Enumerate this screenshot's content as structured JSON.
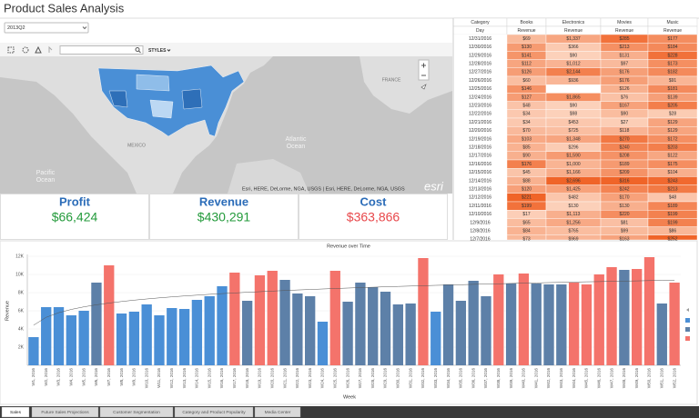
{
  "header": {
    "title": "Product Sales Analysis"
  },
  "filter": {
    "value": "2013Q2"
  },
  "map_toolbar": {
    "styles": "STYLES"
  },
  "map": {
    "labels": [
      {
        "lines": [
          "Pacific",
          "Ocean"
        ]
      },
      {
        "lines": [
          "Atlantic",
          "Ocean"
        ]
      },
      {
        "lines": [
          "MEXICO"
        ]
      },
      {
        "lines": [
          "FRANCE"
        ]
      }
    ],
    "attribution": "Esri, HERE, DeLorme, NGA, USGS | Esri, HERE, DeLorme, NGA, USGS",
    "logo": "esri"
  },
  "kpis": [
    {
      "label": "Profit",
      "value": "$66,424"
    },
    {
      "label": "Revenue",
      "value": "$430,291"
    },
    {
      "label": "Cost",
      "value": "$363,866"
    }
  ],
  "table": {
    "header": [
      "Category",
      "Books",
      "Electronics",
      "Movies",
      "Music"
    ],
    "subheader": [
      "Day",
      "Revenue",
      "Revenue",
      "Revenue",
      "Revenue"
    ],
    "rows": [
      [
        "12/31/2016",
        "$69",
        "$1,337",
        "$285",
        "$177"
      ],
      [
        "12/30/2016",
        "$130",
        "$366",
        "$213",
        "$184"
      ],
      [
        "12/29/2016",
        "$141",
        "$90",
        "$131",
        "$228"
      ],
      [
        "12/28/2016",
        "$112",
        "$1,012",
        "$97",
        "$173"
      ],
      [
        "12/27/2016",
        "$126",
        "$2,144",
        "$176",
        "$182"
      ],
      [
        "12/26/2016",
        "$60",
        "$936",
        "$176",
        "$91"
      ],
      [
        "12/25/2016",
        "$146",
        null,
        "$126",
        "$181"
      ],
      [
        "12/24/2016",
        "$127",
        "$1,865",
        "$76",
        "$139"
      ],
      [
        "12/23/2016",
        "$48",
        "$90",
        "$167",
        "$205"
      ],
      [
        "12/22/2016",
        "$34",
        "$98",
        "$90",
        "$28"
      ],
      [
        "12/21/2016",
        "$34",
        "$453",
        "$27",
        "$129"
      ],
      [
        "12/20/2016",
        "$70",
        "$725",
        "$118",
        "$129"
      ],
      [
        "12/19/2016",
        "$103",
        "$1,348",
        "$270",
        "$172"
      ],
      [
        "12/18/2016",
        "$85",
        "$296",
        "$240",
        "$203"
      ],
      [
        "12/17/2016",
        "$90",
        "$1,590",
        "$208",
        "$122"
      ],
      [
        "12/16/2016",
        "$176",
        "$1,000",
        "$189",
        "$175"
      ],
      [
        "12/15/2016",
        "$45",
        "$1,166",
        "$209",
        "$104"
      ],
      [
        "12/14/2016",
        "$88",
        "$2,696",
        "$316",
        "$243"
      ],
      [
        "12/13/2016",
        "$120",
        "$1,425",
        "$242",
        "$213"
      ],
      [
        "12/12/2016",
        "$221",
        "$482",
        "$170",
        "$48"
      ],
      [
        "12/11/2016",
        "$199",
        "$130",
        "$130",
        "$189"
      ],
      [
        "12/10/2016",
        "$17",
        "$1,113",
        "$220",
        "$199"
      ],
      [
        "12/9/2016",
        "$65",
        "$1,256",
        "$81",
        "$199"
      ],
      [
        "12/8/2016",
        "$84",
        "$765",
        "$99",
        "$86"
      ],
      [
        "12/7/2016",
        "$73",
        "$969",
        "$163",
        "$252"
      ]
    ]
  },
  "chart_data": {
    "type": "bar",
    "title": "Revenue over Time",
    "x_label": "Week",
    "y_label": "Revenue",
    "categories": [
      "W1, 2016",
      "W2, 2016",
      "W3, 2016",
      "W4, 2016",
      "W5, 2016",
      "W6, 2016",
      "W7, 2016",
      "W8, 2016",
      "W9, 2016",
      "W10, 2016",
      "W11, 2016",
      "W12, 2016",
      "W13, 2016",
      "W14, 2016",
      "W15, 2016",
      "W16, 2016",
      "W17, 2016",
      "W18, 2016",
      "W19, 2016",
      "W20, 2016",
      "W21, 2016",
      "W22, 2016",
      "W23, 2016",
      "W24, 2016",
      "W25, 2016",
      "W26, 2016",
      "W27, 2016",
      "W28, 2016",
      "W29, 2016",
      "W30, 2016",
      "W31, 2016",
      "W32, 2016",
      "W33, 2016",
      "W34, 2016",
      "W35, 2016",
      "W36, 2016",
      "W37, 2016",
      "W38, 2016",
      "W39, 2016",
      "W40, 2016",
      "W41, 2016",
      "W42, 2016",
      "W43, 2016",
      "W44, 2016",
      "W45, 2016",
      "W46, 2016",
      "W47, 2016",
      "W48, 2016",
      "W49, 2016",
      "W50, 2016",
      "W51, 2016",
      "W52, 2016"
    ],
    "values": [
      3100,
      6400,
      6400,
      5500,
      6000,
      9100,
      11000,
      5700,
      5900,
      6700,
      5500,
      6300,
      6200,
      7200,
      7600,
      8700,
      10200,
      7100,
      9900,
      10400,
      9400,
      7900,
      7600,
      4800,
      10400,
      7000,
      9100,
      8600,
      8100,
      6700,
      6800,
      11800,
      5900,
      8900,
      7100,
      9300,
      7600,
      10000,
      9000,
      10100,
      9000,
      8900,
      8900,
      9100,
      8900,
      10000,
      10800,
      10500,
      10600,
      11900,
      6800,
      9100
    ],
    "colors": [
      "#4a8fd6",
      "#4a8fd6",
      "#4a8fd6",
      "#4a8fd6",
      "#4a8fd6",
      "#5d80a8",
      "#f4736b",
      "#4a8fd6",
      "#4a8fd6",
      "#4a8fd6",
      "#4a8fd6",
      "#4a8fd6",
      "#4a8fd6",
      "#4a8fd6",
      "#4a8fd6",
      "#4a8fd6",
      "#f4736b",
      "#5d80a8",
      "#f4736b",
      "#f4736b",
      "#5d80a8",
      "#5d80a8",
      "#5d80a8",
      "#4a8fd6",
      "#f4736b",
      "#5d80a8",
      "#5d80a8",
      "#5d80a8",
      "#5d80a8",
      "#5d80a8",
      "#5d80a8",
      "#f4736b",
      "#4a8fd6",
      "#5d80a8",
      "#5d80a8",
      "#5d80a8",
      "#5d80a8",
      "#f4736b",
      "#5d80a8",
      "#f4736b",
      "#5d80a8",
      "#5d80a8",
      "#5d80a8",
      "#f4736b",
      "#f4736b",
      "#f4736b",
      "#f4736b",
      "#5d80a8",
      "#f4736b",
      "#f4736b",
      "#5d80a8",
      "#f4736b"
    ],
    "legend_colors": [
      "#4a8fd6",
      "#5d80a8",
      "#f4736b"
    ],
    "ylim": [
      0,
      12000
    ],
    "yticks": [
      {
        "value": 2000,
        "label": "2K"
      },
      {
        "value": 4000,
        "label": "4K"
      },
      {
        "value": 6000,
        "label": "6K"
      },
      {
        "value": 8000,
        "label": "8K"
      },
      {
        "value": 10000,
        "label": "10K"
      },
      {
        "value": 12000,
        "label": "12K"
      }
    ],
    "grid": true,
    "trendline": true
  },
  "tabs": [
    "Sales",
    "Future Sales Projections",
    "Customer Segmentation",
    "Category and Product Popularity",
    "Media Center"
  ]
}
